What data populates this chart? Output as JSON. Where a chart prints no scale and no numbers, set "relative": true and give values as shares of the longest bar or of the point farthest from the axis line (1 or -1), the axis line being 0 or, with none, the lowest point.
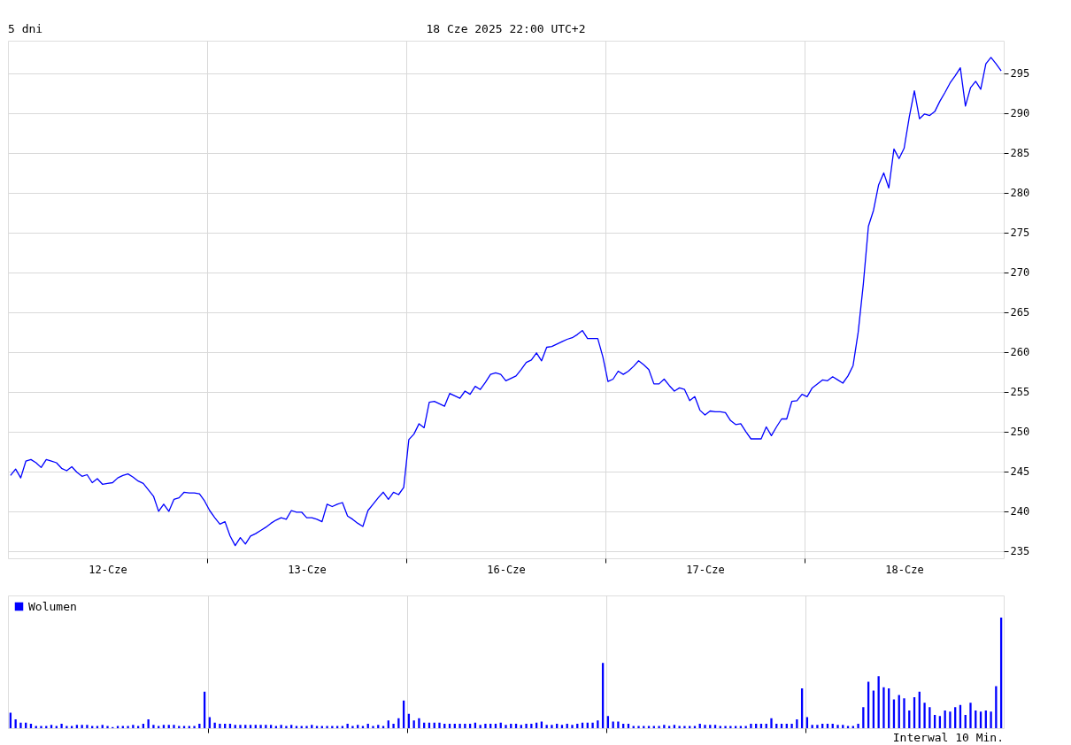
{
  "chart_data": [
    {
      "type": "line",
      "title": "5 dni",
      "subtitle": "18 Cze 2025 22:00 UTC+2",
      "color": "#0000ff",
      "categories": [
        null,
        null,
        null,
        null,
        null,
        null,
        null,
        null,
        null,
        null,
        null,
        null,
        null,
        null,
        null,
        null,
        null,
        null,
        null,
        "12-Cze",
        null,
        null,
        null,
        null,
        null,
        null,
        null,
        null,
        null,
        null,
        null,
        null,
        null,
        null,
        null,
        null,
        null,
        null,
        null,
        null,
        null,
        null,
        null,
        null,
        null,
        null,
        null,
        null,
        null,
        null,
        null,
        null,
        null,
        null,
        null,
        null,
        null,
        null,
        "13-Cze",
        null,
        null,
        null,
        null,
        null,
        null,
        null,
        null,
        null,
        null,
        null,
        null,
        null,
        null,
        null,
        null,
        null,
        null,
        null,
        null,
        null,
        null,
        null,
        null,
        null,
        null,
        null,
        null,
        null,
        null,
        null,
        null,
        null,
        null,
        null,
        null,
        null,
        null,
        "16-Cze",
        null,
        null,
        null,
        null,
        null,
        null,
        null,
        null,
        null,
        null,
        null,
        null,
        null,
        null,
        null,
        null,
        null,
        null,
        null,
        null,
        null,
        null,
        null,
        null,
        null,
        null,
        null,
        null,
        null,
        null,
        null,
        null,
        null,
        null,
        null,
        null,
        null,
        null,
        "17-Cze",
        null,
        null,
        null,
        null,
        null,
        null,
        null,
        null,
        null,
        null,
        null,
        null,
        null,
        null,
        null,
        null,
        null,
        null,
        null,
        null,
        null,
        null,
        null,
        null,
        null,
        null,
        null,
        null,
        null,
        null,
        null,
        null,
        null,
        null,
        null,
        null,
        null,
        null,
        "18-Cze",
        null,
        null,
        null,
        null,
        null,
        null,
        null,
        null,
        null,
        null,
        null,
        null,
        null,
        null,
        null,
        null,
        null,
        null,
        null
      ],
      "values": [
        244.5,
        245.3,
        244.2,
        246.3,
        246.5,
        246.1,
        245.5,
        246.5,
        246.3,
        246.1,
        245.4,
        245.1,
        245.6,
        244.9,
        244.4,
        244.6,
        243.6,
        244.1,
        243.4,
        243.5,
        243.6,
        244.2,
        244.5,
        244.7,
        244.3,
        243.8,
        243.5,
        242.7,
        241.9,
        240.0,
        240.9,
        240.0,
        241.5,
        241.7,
        242.4,
        242.3,
        242.3,
        242.2,
        241.3,
        240.1,
        239.2,
        238.4,
        238.7,
        236.9,
        235.7,
        236.7,
        235.9,
        236.9,
        237.2,
        237.6,
        238.0,
        238.5,
        238.9,
        239.2,
        239.0,
        240.1,
        239.9,
        239.9,
        239.2,
        239.2,
        239.0,
        238.7,
        240.9,
        240.6,
        240.9,
        241.1,
        239.4,
        239.0,
        238.5,
        238.1,
        240.1,
        240.9,
        241.7,
        242.4,
        241.5,
        242.4,
        242.1,
        243.0,
        249.0,
        249.7,
        251.0,
        250.5,
        253.7,
        253.8,
        253.5,
        253.2,
        254.8,
        254.5,
        254.2,
        255.1,
        254.7,
        255.7,
        255.3,
        256.2,
        257.2,
        257.4,
        257.2,
        256.4,
        256.7,
        257.0,
        257.8,
        258.7,
        259.0,
        259.9,
        258.9,
        260.6,
        260.7,
        261.0,
        261.3,
        261.6,
        261.8,
        262.2,
        262.7,
        261.7,
        261.7,
        261.7,
        259.4,
        256.3,
        256.6,
        257.6,
        257.2,
        257.6,
        258.2,
        258.9,
        258.4,
        257.8,
        256.0,
        256.0,
        256.6,
        255.8,
        255.1,
        255.5,
        255.3,
        253.9,
        254.4,
        252.7,
        252.1,
        252.6,
        252.5,
        252.5,
        252.4,
        251.4,
        250.9,
        251.0,
        250.0,
        249.1,
        249.1,
        249.1,
        250.6,
        249.5,
        250.6,
        251.6,
        251.6,
        253.8,
        253.9,
        254.7,
        254.4,
        255.5,
        256.0,
        256.5,
        256.4,
        256.9,
        256.5,
        256.1,
        257.0,
        258.3,
        262.5,
        268.5,
        275.8,
        277.8,
        281.0,
        282.5,
        280.6,
        285.5,
        284.3,
        285.6,
        289.5,
        292.8,
        289.3,
        289.9,
        289.7,
        290.2,
        291.5,
        292.6,
        293.8,
        294.7,
        295.7,
        290.9,
        293.2,
        294.0,
        293.0,
        296.2,
        297.0,
        296.2,
        295.3
      ],
      "ylim": [
        234.1,
        299.1
      ],
      "yticks": [
        235,
        240,
        245,
        250,
        255,
        260,
        265,
        270,
        275,
        280,
        285,
        290,
        295
      ],
      "grid": true
    },
    {
      "type": "bar",
      "relative": true,
      "legend": "top left",
      "grid": "x",
      "annotations": [
        "Interwal 10 Min."
      ],
      "categories": [
        null,
        null,
        null,
        null,
        null,
        null,
        null,
        null,
        null,
        null,
        null,
        null,
        null,
        null,
        null,
        null,
        null,
        null,
        null,
        null,
        null,
        null,
        null,
        null,
        null,
        null,
        null,
        null,
        null,
        null,
        null,
        null,
        null,
        null,
        null,
        null,
        null,
        null,
        null,
        null,
        null,
        null,
        null,
        null,
        null,
        null,
        null,
        null,
        null,
        null,
        null,
        null,
        null,
        null,
        null,
        null,
        null,
        null,
        null,
        null,
        null,
        null,
        null,
        null,
        null,
        null,
        null,
        null,
        null,
        null,
        null,
        null,
        null,
        null,
        null,
        null,
        null,
        null,
        null,
        null,
        null,
        null,
        null,
        null,
        null,
        null,
        null,
        null,
        null,
        null,
        null,
        null,
        null,
        null,
        null,
        null,
        null,
        null,
        null,
        null,
        null,
        null,
        null,
        null,
        null,
        null,
        null,
        null,
        null,
        null,
        null,
        null,
        null,
        null,
        null,
        null,
        null,
        null,
        null,
        null,
        null,
        null,
        null,
        null,
        null,
        null,
        null,
        null,
        null,
        null,
        null,
        null,
        null,
        null,
        null,
        null,
        null,
        null,
        null,
        null,
        null,
        null,
        null,
        null,
        null,
        null,
        null,
        null,
        null,
        null,
        null,
        null,
        null,
        null,
        null,
        null,
        null,
        null,
        null,
        null,
        null,
        null,
        null,
        null,
        null,
        null,
        null,
        null,
        null,
        null,
        null,
        null,
        null,
        null,
        null,
        null,
        null,
        null,
        null,
        null,
        null,
        null,
        null,
        null,
        null,
        null,
        null,
        null,
        null,
        null,
        null,
        null,
        null,
        null,
        null
      ],
      "series": [
        {
          "name": "Wolumen",
          "color": "#0000ff",
          "values": [
            0.14,
            0.08,
            0.05,
            0.05,
            0.04,
            0.02,
            0.02,
            0.02,
            0.03,
            0.02,
            0.04,
            0.02,
            0.02,
            0.03,
            0.03,
            0.03,
            0.02,
            0.02,
            0.03,
            0.02,
            0.01,
            0.02,
            0.02,
            0.02,
            0.03,
            0.02,
            0.04,
            0.08,
            0.03,
            0.02,
            0.03,
            0.03,
            0.03,
            0.02,
            0.02,
            0.02,
            0.02,
            0.04,
            0.33,
            0.1,
            0.05,
            0.04,
            0.04,
            0.04,
            0.03,
            0.03,
            0.03,
            0.03,
            0.03,
            0.03,
            0.03,
            0.03,
            0.02,
            0.03,
            0.02,
            0.03,
            0.02,
            0.02,
            0.02,
            0.03,
            0.02,
            0.02,
            0.02,
            0.02,
            0.02,
            0.02,
            0.04,
            0.02,
            0.03,
            0.02,
            0.04,
            0.02,
            0.03,
            0.02,
            0.07,
            0.04,
            0.09,
            0.25,
            0.13,
            0.07,
            0.09,
            0.05,
            0.05,
            0.05,
            0.05,
            0.04,
            0.04,
            0.04,
            0.04,
            0.04,
            0.04,
            0.05,
            0.03,
            0.04,
            0.04,
            0.04,
            0.05,
            0.03,
            0.04,
            0.04,
            0.03,
            0.04,
            0.04,
            0.05,
            0.06,
            0.03,
            0.03,
            0.04,
            0.03,
            0.04,
            0.03,
            0.04,
            0.05,
            0.05,
            0.05,
            0.07,
            0.59,
            0.11,
            0.06,
            0.06,
            0.04,
            0.04,
            0.02,
            0.02,
            0.02,
            0.02,
            0.02,
            0.02,
            0.03,
            0.02,
            0.03,
            0.02,
            0.02,
            0.02,
            0.02,
            0.04,
            0.03,
            0.03,
            0.03,
            0.02,
            0.02,
            0.02,
            0.02,
            0.02,
            0.02,
            0.04,
            0.04,
            0.04,
            0.04,
            0.09,
            0.04,
            0.04,
            0.04,
            0.04,
            0.08,
            0.36,
            0.1,
            0.03,
            0.03,
            0.04,
            0.04,
            0.04,
            0.03,
            0.03,
            0.02,
            0.02,
            0.04,
            0.19,
            0.42,
            0.34,
            0.47,
            0.37,
            0.36,
            0.26,
            0.3,
            0.27,
            0.16,
            0.28,
            0.33,
            0.23,
            0.19,
            0.12,
            0.11,
            0.16,
            0.15,
            0.19,
            0.21,
            0.12,
            0.23,
            0.16,
            0.15,
            0.16,
            0.15,
            0.38,
            1.0
          ]
        }
      ]
    }
  ]
}
